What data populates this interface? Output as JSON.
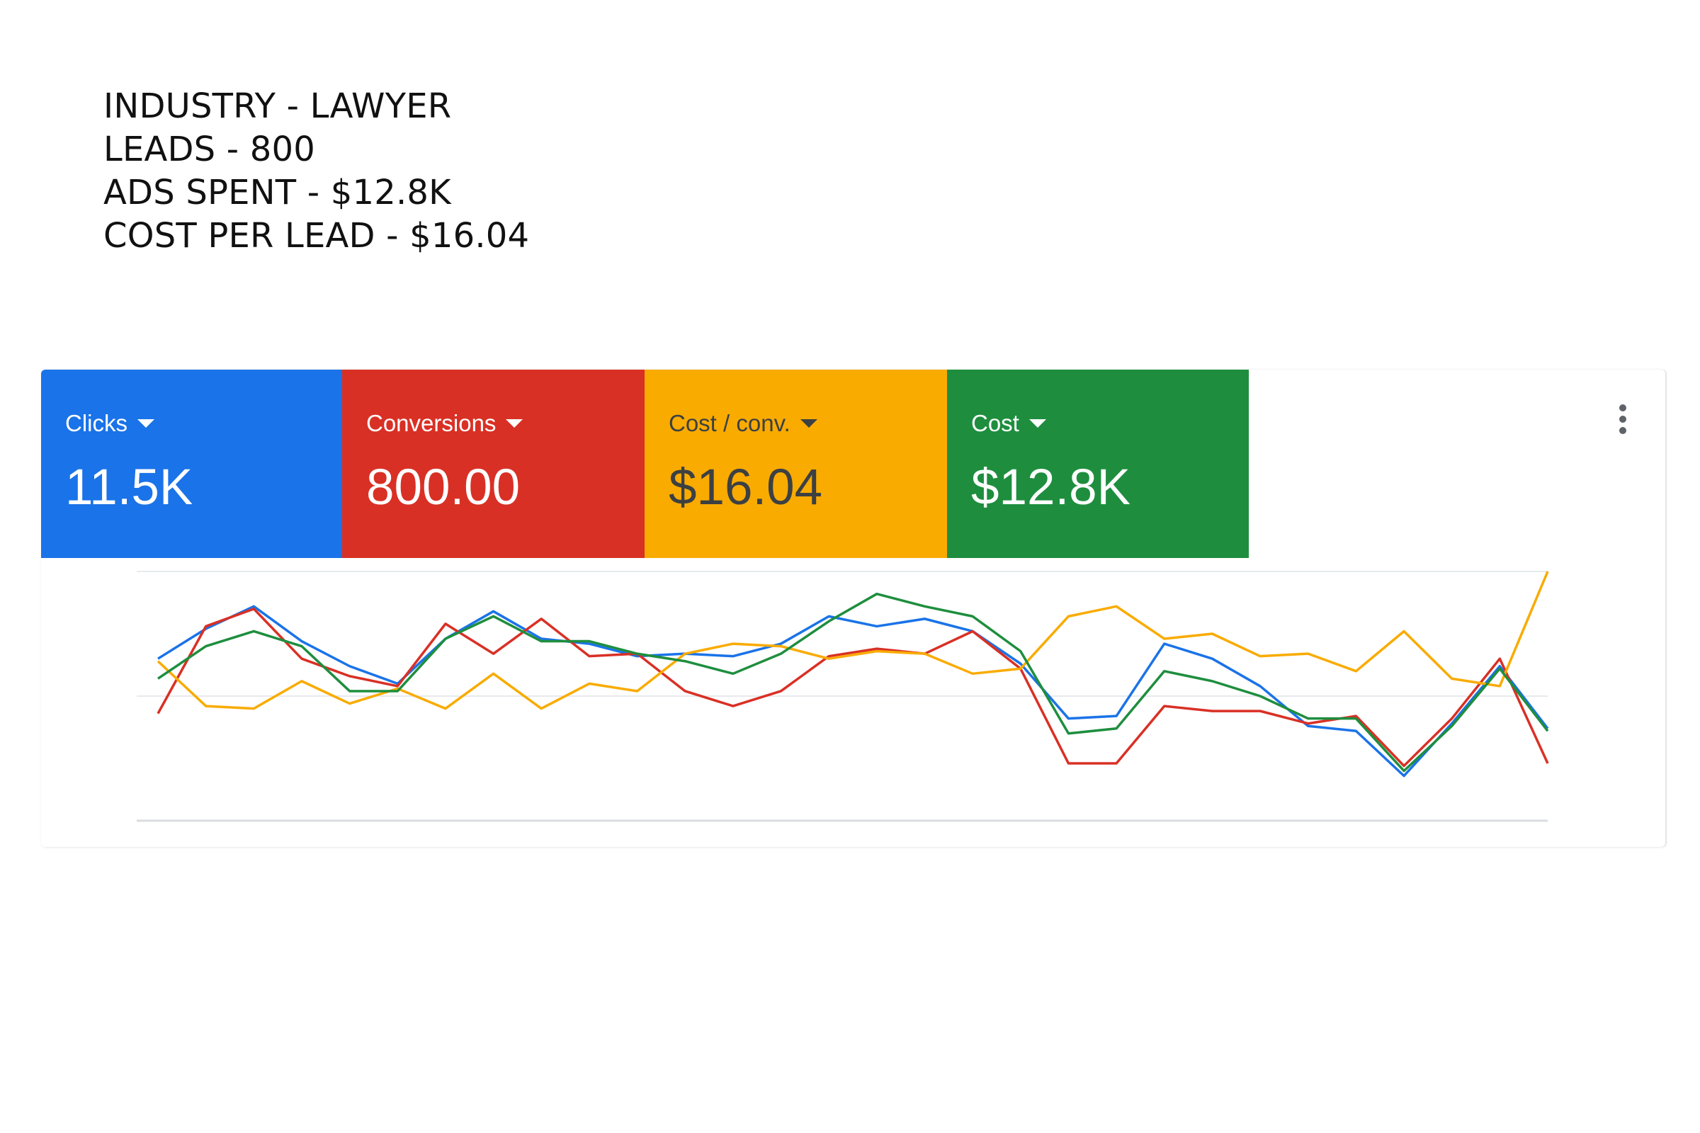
{
  "summary": {
    "lines": [
      "INDUSTRY - LAWYER",
      "LEADS - 800",
      "ADS SPENT - $12.8K",
      "COST PER LEAD - $16.04"
    ]
  },
  "scorecards": [
    {
      "label": "Clicks",
      "value": "11.5K",
      "color": "#1a73e8",
      "text_color": "#ffffff",
      "icon": "caret-down-icon"
    },
    {
      "label": "Conversions",
      "value": "800.00",
      "color": "#d93025",
      "text_color": "#ffffff",
      "icon": "caret-down-icon"
    },
    {
      "label": "Cost / conv.",
      "value": "$16.04",
      "color": "#f9ab00",
      "text_color": "#3c4043",
      "icon": "caret-down-icon"
    },
    {
      "label": "Cost",
      "value": "$12.8K",
      "color": "#1e8e3e",
      "text_color": "#ffffff",
      "icon": "caret-down-icon"
    }
  ],
  "menu": {
    "icon": "more-vert-icon"
  },
  "chart_data": {
    "type": "line",
    "x": [
      1,
      2,
      3,
      4,
      5,
      6,
      7,
      8,
      9,
      10,
      11,
      12,
      13,
      14,
      15,
      16,
      17,
      18,
      19,
      20,
      21,
      22,
      23,
      24,
      25,
      26,
      27,
      28,
      29,
      30
    ],
    "ylim": [
      0,
      100
    ],
    "grid": true,
    "series": [
      {
        "color": "#1a73e8",
        "values": [
          65,
          77,
          86,
          72,
          62,
          55,
          73,
          84,
          73,
          71,
          66,
          67,
          66,
          71,
          82,
          78,
          81,
          76,
          63,
          41,
          42,
          71,
          65,
          54,
          38,
          36,
          18,
          39,
          62,
          37
        ]
      },
      {
        "color": "#d93025",
        "values": [
          43,
          78,
          85,
          65,
          58,
          54,
          79,
          67,
          81,
          66,
          67,
          52,
          46,
          52,
          66,
          69,
          67,
          76,
          61,
          23,
          23,
          46,
          44,
          44,
          39,
          42,
          22,
          41,
          65,
          23
        ]
      },
      {
        "color": "#f9ab00",
        "values": [
          64,
          46,
          45,
          56,
          47,
          53,
          45,
          59,
          45,
          55,
          52,
          67,
          71,
          70,
          65,
          68,
          67,
          59,
          61,
          82,
          86,
          73,
          75,
          66,
          67,
          60,
          76,
          57,
          54,
          100
        ]
      },
      {
        "color": "#1e8e3e",
        "values": [
          57,
          70,
          76,
          70,
          52,
          52,
          73,
          82,
          72,
          72,
          67,
          64,
          59,
          67,
          80,
          91,
          86,
          82,
          68,
          35,
          37,
          60,
          56,
          50,
          41,
          41,
          20,
          38,
          61,
          36
        ]
      }
    ]
  }
}
